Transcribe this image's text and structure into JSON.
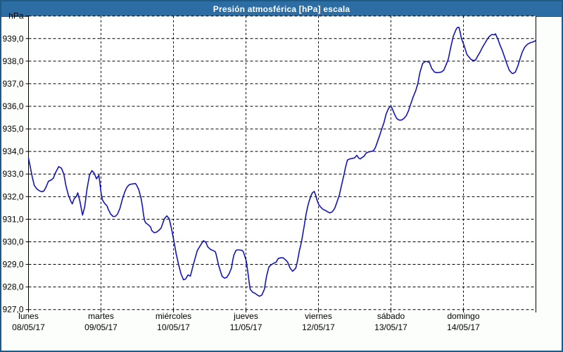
{
  "header": {
    "title": "Presión atmosférica [hPa] escala"
  },
  "colors": {
    "titlebar_bg": "#2c6da4",
    "window_border": "#1f5a84",
    "window_bg": "#fcfefb",
    "plot_bg": "#ffffff",
    "grid": "#000000",
    "line": "#1414b8",
    "label_text": "#000000",
    "title_text": "#ffffff"
  },
  "chart_data": {
    "type": "line",
    "title": "Presión atmosférica [hPa] escala",
    "unit": "hPa",
    "ylabel": "hPa",
    "xlabel": "",
    "ylim": [
      927.0,
      940.0
    ],
    "ytick_step": 1.0,
    "ytick_labels": [
      "939,0",
      "938,0",
      "937,0",
      "936,0",
      "935,0",
      "934,0",
      "933,0",
      "932,0",
      "931,0",
      "930,0",
      "929,0",
      "928,0",
      "927,0"
    ],
    "x_range_hours": [
      0,
      168
    ],
    "grid": "dashed",
    "legend": "none",
    "x_days": [
      {
        "name": "lunes",
        "date": "08/05/17"
      },
      {
        "name": "martes",
        "date": "09/05/17"
      },
      {
        "name": "miércoles",
        "date": "10/05/17"
      },
      {
        "name": "jueves",
        "date": "11/05/17"
      },
      {
        "name": "viernes",
        "date": "12/05/17"
      },
      {
        "name": "sábado",
        "date": "13/05/17"
      },
      {
        "name": "domingo",
        "date": "14/05/17"
      }
    ],
    "series": [
      {
        "name": "Presión atmosférica",
        "color": "#1414b8",
        "points": [
          [
            0.0,
            933.7
          ],
          [
            0.4,
            933.45
          ],
          [
            1.2,
            932.9
          ],
          [
            1.9,
            932.5
          ],
          [
            2.7,
            932.35
          ],
          [
            3.5,
            932.27
          ],
          [
            4.3,
            932.22
          ],
          [
            5.1,
            932.25
          ],
          [
            5.8,
            932.42
          ],
          [
            6.6,
            932.68
          ],
          [
            7.4,
            932.73
          ],
          [
            8.2,
            932.81
          ],
          [
            8.9,
            933.05
          ],
          [
            10.0,
            933.33
          ],
          [
            10.9,
            933.26
          ],
          [
            11.7,
            933.0
          ],
          [
            12.4,
            932.48
          ],
          [
            13.2,
            932.07
          ],
          [
            14.0,
            931.8
          ],
          [
            14.5,
            931.68
          ],
          [
            15.1,
            931.9
          ],
          [
            15.9,
            932.02
          ],
          [
            16.3,
            932.17
          ],
          [
            17.0,
            931.8
          ],
          [
            17.9,
            931.18
          ],
          [
            18.6,
            931.54
          ],
          [
            19.4,
            932.37
          ],
          [
            20.2,
            932.95
          ],
          [
            21.0,
            933.15
          ],
          [
            21.7,
            933.05
          ],
          [
            22.5,
            932.79
          ],
          [
            23.3,
            932.95
          ],
          [
            24.1,
            932.1
          ],
          [
            24.5,
            931.85
          ],
          [
            25.2,
            931.7
          ],
          [
            26.0,
            931.59
          ],
          [
            26.4,
            931.44
          ],
          [
            27.2,
            931.23
          ],
          [
            28.0,
            931.12
          ],
          [
            28.7,
            931.12
          ],
          [
            29.5,
            931.23
          ],
          [
            30.3,
            931.49
          ],
          [
            31.1,
            931.9
          ],
          [
            31.9,
            932.22
          ],
          [
            32.6,
            932.42
          ],
          [
            33.4,
            932.53
          ],
          [
            34.2,
            932.56
          ],
          [
            35.4,
            932.58
          ],
          [
            35.7,
            932.53
          ],
          [
            36.5,
            932.32
          ],
          [
            37.3,
            931.9
          ],
          [
            37.7,
            931.59
          ],
          [
            38.1,
            931.18
          ],
          [
            38.5,
            930.92
          ],
          [
            38.8,
            930.84
          ],
          [
            39.6,
            930.76
          ],
          [
            40.4,
            930.66
          ],
          [
            40.8,
            930.5
          ],
          [
            41.6,
            930.4
          ],
          [
            42.3,
            930.42
          ],
          [
            43.1,
            930.5
          ],
          [
            43.9,
            930.61
          ],
          [
            44.3,
            930.76
          ],
          [
            45.0,
            931.02
          ],
          [
            45.8,
            931.15
          ],
          [
            46.6,
            931.02
          ],
          [
            47.4,
            930.55
          ],
          [
            48.0,
            930.13
          ],
          [
            48.9,
            929.46
          ],
          [
            49.7,
            928.99
          ],
          [
            50.5,
            928.58
          ],
          [
            51.3,
            928.32
          ],
          [
            52.0,
            928.35
          ],
          [
            52.8,
            928.53
          ],
          [
            53.6,
            928.48
          ],
          [
            54.8,
            929.1
          ],
          [
            55.9,
            929.62
          ],
          [
            57.1,
            929.88
          ],
          [
            57.9,
            930.05
          ],
          [
            58.7,
            929.98
          ],
          [
            59.4,
            929.77
          ],
          [
            60.2,
            929.67
          ],
          [
            61.0,
            929.62
          ],
          [
            61.8,
            929.57
          ],
          [
            62.1,
            929.46
          ],
          [
            62.9,
            928.99
          ],
          [
            63.7,
            928.63
          ],
          [
            64.1,
            928.47
          ],
          [
            64.9,
            928.39
          ],
          [
            65.6,
            928.42
          ],
          [
            66.4,
            928.58
          ],
          [
            67.2,
            928.84
          ],
          [
            67.6,
            929.15
          ],
          [
            68.0,
            929.41
          ],
          [
            68.7,
            929.62
          ],
          [
            69.1,
            929.64
          ],
          [
            69.9,
            929.64
          ],
          [
            70.7,
            929.62
          ],
          [
            71.1,
            929.57
          ],
          [
            71.5,
            929.41
          ],
          [
            72.1,
            929.15
          ],
          [
            72.6,
            928.68
          ],
          [
            73.0,
            928.26
          ],
          [
            73.4,
            927.9
          ],
          [
            74.2,
            927.77
          ],
          [
            75.0,
            927.72
          ],
          [
            75.7,
            927.65
          ],
          [
            76.5,
            927.59
          ],
          [
            77.3,
            927.65
          ],
          [
            78.1,
            927.9
          ],
          [
            78.8,
            928.47
          ],
          [
            79.6,
            928.89
          ],
          [
            80.4,
            928.99
          ],
          [
            81.2,
            929.05
          ],
          [
            82.0,
            929.1
          ],
          [
            82.7,
            929.26
          ],
          [
            83.5,
            929.29
          ],
          [
            84.3,
            929.29
          ],
          [
            85.1,
            929.2
          ],
          [
            85.8,
            929.1
          ],
          [
            86.6,
            928.84
          ],
          [
            87.4,
            928.7
          ],
          [
            87.8,
            928.74
          ],
          [
            88.5,
            928.84
          ],
          [
            88.9,
            929.05
          ],
          [
            89.3,
            929.31
          ],
          [
            89.7,
            929.62
          ],
          [
            90.1,
            929.83
          ],
          [
            90.5,
            930.09
          ],
          [
            90.9,
            930.4
          ],
          [
            91.3,
            930.71
          ],
          [
            91.6,
            930.97
          ],
          [
            92.0,
            931.28
          ],
          [
            92.4,
            931.54
          ],
          [
            92.8,
            931.75
          ],
          [
            93.2,
            931.91
          ],
          [
            93.6,
            932.06
          ],
          [
            94.0,
            932.17
          ],
          [
            94.6,
            932.23
          ],
          [
            95.1,
            932.06
          ],
          [
            95.5,
            931.85
          ],
          [
            96.1,
            931.65
          ],
          [
            96.7,
            931.54
          ],
          [
            97.5,
            931.44
          ],
          [
            98.3,
            931.39
          ],
          [
            99.0,
            931.33
          ],
          [
            99.8,
            931.28
          ],
          [
            100.6,
            931.33
          ],
          [
            101.4,
            931.49
          ],
          [
            102.1,
            931.75
          ],
          [
            102.9,
            932.06
          ],
          [
            103.7,
            932.53
          ],
          [
            104.5,
            933.0
          ],
          [
            104.9,
            933.26
          ],
          [
            105.3,
            933.47
          ],
          [
            105.6,
            933.62
          ],
          [
            106.4,
            933.67
          ],
          [
            107.2,
            933.69
          ],
          [
            108.0,
            933.72
          ],
          [
            108.7,
            933.83
          ],
          [
            109.1,
            933.75
          ],
          [
            109.5,
            933.69
          ],
          [
            109.9,
            933.67
          ],
          [
            110.3,
            933.72
          ],
          [
            111.1,
            933.79
          ],
          [
            111.8,
            933.93
          ],
          [
            112.6,
            933.98
          ],
          [
            113.4,
            934.0
          ],
          [
            114.2,
            934.03
          ],
          [
            114.9,
            934.19
          ],
          [
            115.3,
            934.34
          ],
          [
            116.1,
            934.65
          ],
          [
            116.9,
            934.97
          ],
          [
            117.7,
            935.28
          ],
          [
            118.4,
            935.65
          ],
          [
            119.2,
            935.91
          ],
          [
            120.0,
            936.01
          ],
          [
            120.4,
            935.91
          ],
          [
            121.2,
            935.65
          ],
          [
            121.9,
            935.46
          ],
          [
            122.7,
            935.39
          ],
          [
            123.5,
            935.39
          ],
          [
            124.3,
            935.46
          ],
          [
            125.1,
            935.59
          ],
          [
            125.8,
            935.8
          ],
          [
            126.6,
            936.12
          ],
          [
            127.4,
            936.43
          ],
          [
            128.2,
            936.69
          ],
          [
            128.9,
            937.0
          ],
          [
            129.6,
            937.5
          ],
          [
            130.5,
            937.9
          ],
          [
            131.3,
            937.98
          ],
          [
            132.1,
            937.98
          ],
          [
            132.8,
            937.93
          ],
          [
            133.5,
            937.68
          ],
          [
            134.4,
            937.52
          ],
          [
            135.2,
            937.49
          ],
          [
            135.9,
            937.5
          ],
          [
            136.7,
            937.52
          ],
          [
            137.5,
            937.6
          ],
          [
            138.3,
            937.85
          ],
          [
            139.0,
            938.09
          ],
          [
            139.8,
            938.61
          ],
          [
            140.6,
            939.08
          ],
          [
            141.4,
            939.35
          ],
          [
            141.9,
            939.48
          ],
          [
            142.5,
            939.5
          ],
          [
            142.9,
            939.3
          ],
          [
            143.3,
            939.02
          ],
          [
            143.8,
            938.85
          ],
          [
            144.2,
            938.7
          ],
          [
            144.9,
            938.4
          ],
          [
            145.2,
            938.29
          ],
          [
            145.6,
            938.22
          ],
          [
            146.4,
            938.09
          ],
          [
            147.2,
            938.03
          ],
          [
            148.0,
            938.05
          ],
          [
            148.7,
            938.22
          ],
          [
            149.5,
            938.4
          ],
          [
            150.3,
            938.61
          ],
          [
            151.1,
            938.79
          ],
          [
            151.9,
            938.97
          ],
          [
            152.6,
            939.1
          ],
          [
            153.4,
            939.18
          ],
          [
            154.2,
            939.16
          ],
          [
            154.6,
            939.21
          ],
          [
            155.4,
            938.98
          ],
          [
            156.1,
            938.72
          ],
          [
            156.9,
            938.46
          ],
          [
            157.7,
            938.15
          ],
          [
            158.5,
            937.84
          ],
          [
            159.2,
            937.6
          ],
          [
            160.0,
            937.47
          ],
          [
            160.4,
            937.45
          ],
          [
            161.2,
            937.52
          ],
          [
            162.0,
            937.78
          ],
          [
            162.7,
            938.09
          ],
          [
            163.5,
            938.41
          ],
          [
            164.3,
            938.62
          ],
          [
            165.1,
            938.74
          ],
          [
            166.2,
            938.82
          ],
          [
            167.0,
            938.85
          ],
          [
            167.8,
            938.9
          ]
        ]
      }
    ]
  }
}
